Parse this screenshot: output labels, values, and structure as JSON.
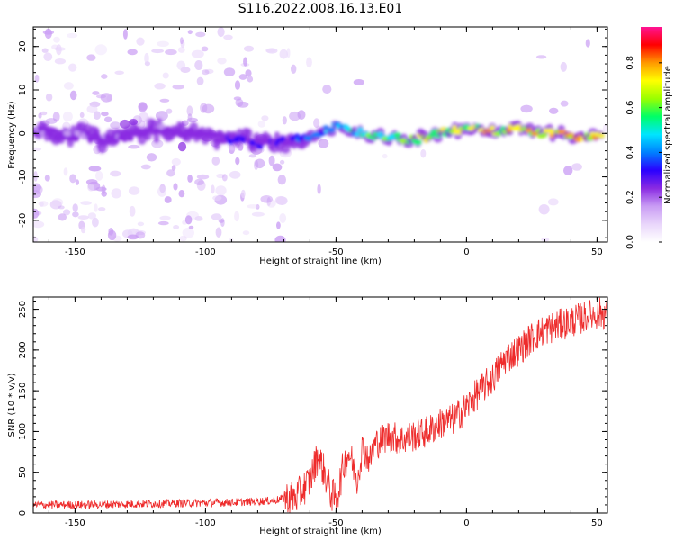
{
  "title": "S116.2022.008.16.13.E01",
  "colors": {
    "snr_line": "#ee2b2b",
    "axis": "#000000",
    "background": "#ffffff"
  },
  "colormap": [
    "#ffffff",
    "#e9d6fb",
    "#c99cf4",
    "#8a2be2",
    "#2a00ff",
    "#0080ff",
    "#00e5ff",
    "#00ff66",
    "#9aff00",
    "#ffff00",
    "#ff9900",
    "#ff0000",
    "#ff1493"
  ],
  "chart_data": [
    {
      "type": "heatmap",
      "title": "",
      "xlabel": "Height of straight line (km)",
      "ylabel": "Frequency (Hz)",
      "xlim": [
        -166,
        54
      ],
      "ylim": [
        -25,
        24.5
      ],
      "xticks": [
        -150,
        -100,
        -50,
        0,
        50
      ],
      "xtick_labels": [
        "-150",
        "-100",
        "-50",
        "0",
        "50"
      ],
      "yticks": [
        -20,
        -10,
        0,
        10,
        20
      ],
      "ytick_labels": [
        "-20",
        "-10",
        "0",
        "10",
        "20"
      ],
      "colorbar": {
        "label": "Normalized spectral amplitude",
        "range": [
          0,
          0.96
        ],
        "ticks": [
          0.0,
          0.2,
          0.4,
          0.6,
          0.8
        ],
        "tick_labels": [
          "0.0",
          "0.2",
          "0.4",
          "0.6",
          "0.8"
        ]
      },
      "ridge": [
        {
          "x": -166,
          "y": 0.5
        },
        {
          "x": -150,
          "y": -0.5
        },
        {
          "x": -135,
          "y": -1.5
        },
        {
          "x": -120,
          "y": 1.0
        },
        {
          "x": -105,
          "y": 0.0
        },
        {
          "x": -90,
          "y": -1.5
        },
        {
          "x": -75,
          "y": -2.5
        },
        {
          "x": -65,
          "y": -1.5
        },
        {
          "x": -55,
          "y": 0.5
        },
        {
          "x": -50,
          "y": 1.5
        },
        {
          "x": -40,
          "y": 0.0
        },
        {
          "x": -30,
          "y": -1.0
        },
        {
          "x": -20,
          "y": -1.5
        },
        {
          "x": -10,
          "y": 0.0
        },
        {
          "x": 0,
          "y": 1.5
        },
        {
          "x": 10,
          "y": 0.5
        },
        {
          "x": 20,
          "y": 1.0
        },
        {
          "x": 30,
          "y": 0.0
        },
        {
          "x": 40,
          "y": -0.5
        },
        {
          "x": 50,
          "y": -1.0
        }
      ],
      "peak_amplitude": [
        {
          "x": -166,
          "v": 0.25
        },
        {
          "x": -100,
          "v": 0.28
        },
        {
          "x": -70,
          "v": 0.35
        },
        {
          "x": -55,
          "v": 0.45
        },
        {
          "x": -40,
          "v": 0.6
        },
        {
          "x": -20,
          "v": 0.7
        },
        {
          "x": 0,
          "v": 0.75
        },
        {
          "x": 20,
          "v": 0.8
        },
        {
          "x": 40,
          "v": 0.85
        },
        {
          "x": 50,
          "v": 0.9
        }
      ]
    },
    {
      "type": "line",
      "title": "",
      "xlabel": "Height of straight line (km)",
      "ylabel": "SNR (10 * v/v)",
      "xlim": [
        -166,
        54
      ],
      "ylim": [
        0,
        265
      ],
      "xticks": [
        -150,
        -100,
        -50,
        0,
        50
      ],
      "xtick_labels": [
        "-150",
        "-100",
        "-50",
        "0",
        "50"
      ],
      "yticks": [
        0,
        50,
        100,
        150,
        200,
        250
      ],
      "ytick_labels": [
        "0",
        "50",
        "100",
        "150",
        "200",
        "250"
      ],
      "series": [
        {
          "name": "SNR",
          "x": [
            -166,
            -150,
            -130,
            -110,
            -90,
            -75,
            -65,
            -60,
            -57,
            -55,
            -52,
            -50,
            -47,
            -45,
            -42,
            -40,
            -37,
            -35,
            -30,
            -25,
            -20,
            -15,
            -10,
            -5,
            0,
            5,
            10,
            15,
            20,
            25,
            30,
            35,
            40,
            45,
            50,
            54
          ],
          "values": [
            10,
            10,
            11,
            12,
            13,
            15,
            20,
            40,
            70,
            55,
            25,
            15,
            60,
            75,
            40,
            80,
            65,
            85,
            95,
            90,
            95,
            100,
            110,
            115,
            130,
            150,
            165,
            190,
            200,
            215,
            225,
            230,
            235,
            240,
            245,
            245
          ]
        }
      ]
    }
  ]
}
